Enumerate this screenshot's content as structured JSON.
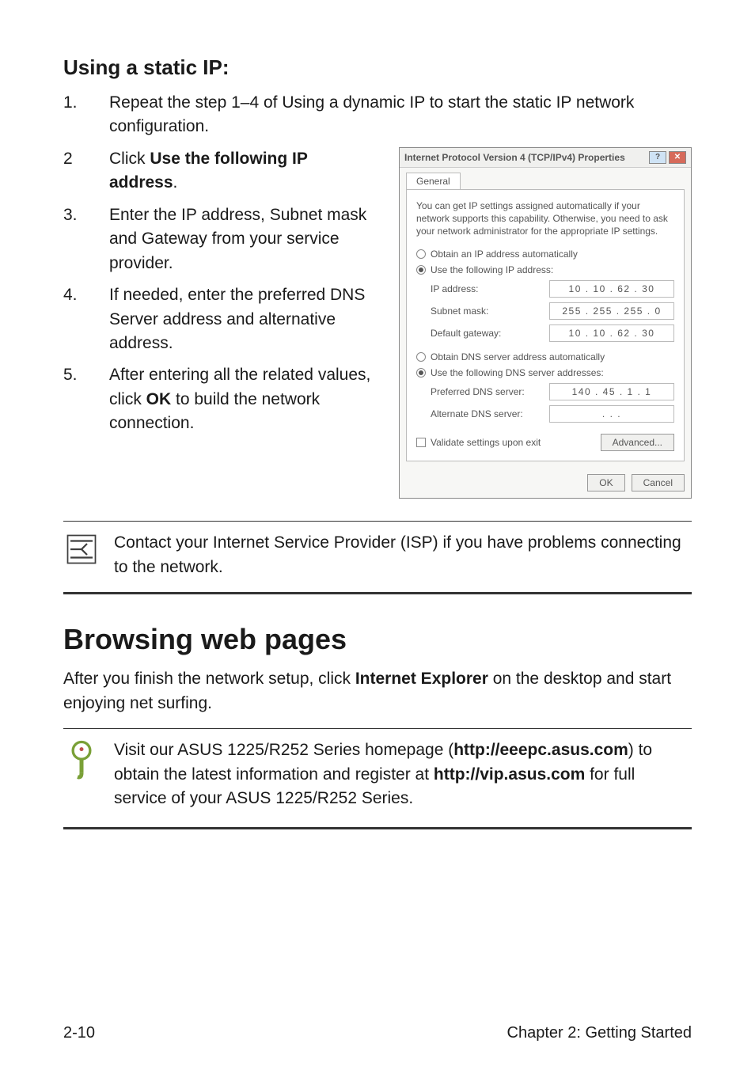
{
  "section_title": "Using a static IP:",
  "steps": [
    {
      "n": "1.",
      "html": "Repeat the step 1–4 of Using a dynamic IP to start the static IP network configuration."
    },
    {
      "n": "2",
      "html": "Click <b>Use the following IP address</b>."
    },
    {
      "n": "3.",
      "html": "Enter the IP address, Subnet mask and Gateway from your service provider."
    },
    {
      "n": "4.",
      "html": "If needed, enter the preferred DNS Server address and alternative address."
    },
    {
      "n": "5.",
      "html": "After entering all the related values, click <b>OK</b> to build the network connection."
    }
  ],
  "dialog": {
    "title": "Internet Protocol Version 4 (TCP/IPv4) Properties",
    "tab": "General",
    "intro": "You can get IP settings assigned automatically if your network supports this capability. Otherwise, you need to ask your network administrator for the appropriate IP settings.",
    "radio_auto_ip": "Obtain an IP address automatically",
    "radio_use_ip": "Use the following IP address:",
    "ip_label": "IP address:",
    "ip_value": "10 . 10 . 62 . 30",
    "mask_label": "Subnet mask:",
    "mask_value": "255 . 255 . 255 .  0",
    "gw_label": "Default gateway:",
    "gw_value": "10 . 10 . 62 . 30",
    "radio_auto_dns": "Obtain DNS server address automatically",
    "radio_use_dns": "Use the following DNS server addresses:",
    "pref_dns_label": "Preferred DNS server:",
    "pref_dns_value": "140 . 45 .  1 .  1",
    "alt_dns_label": "Alternate DNS server:",
    "alt_dns_value": " .   .   . ",
    "validate": "Validate settings upon exit",
    "advanced": "Advanced...",
    "ok": "OK",
    "cancel": "Cancel"
  },
  "note_text": "Contact your Internet Service Provider (ISP) if you have problems connecting to the network.",
  "browsing_heading": "Browsing web pages",
  "browsing_body": "After you finish the network setup, click <b>Internet Explorer</b> on the desktop and start enjoying net surfing.",
  "tip_text": "Visit our ASUS 1225/R252 Series homepage (<b>http://eeepc.asus.com</b>) to obtain the latest information and register at <b>http://vip.asus.com</b> for full service of your ASUS 1225/R252 Series.",
  "footer_left": "2-10",
  "footer_right": "Chapter 2: Getting Started",
  "colors": {
    "note_stroke": "#3f3f3f",
    "tip_stroke": "#7aa037",
    "tip_red": "#c0504d"
  }
}
